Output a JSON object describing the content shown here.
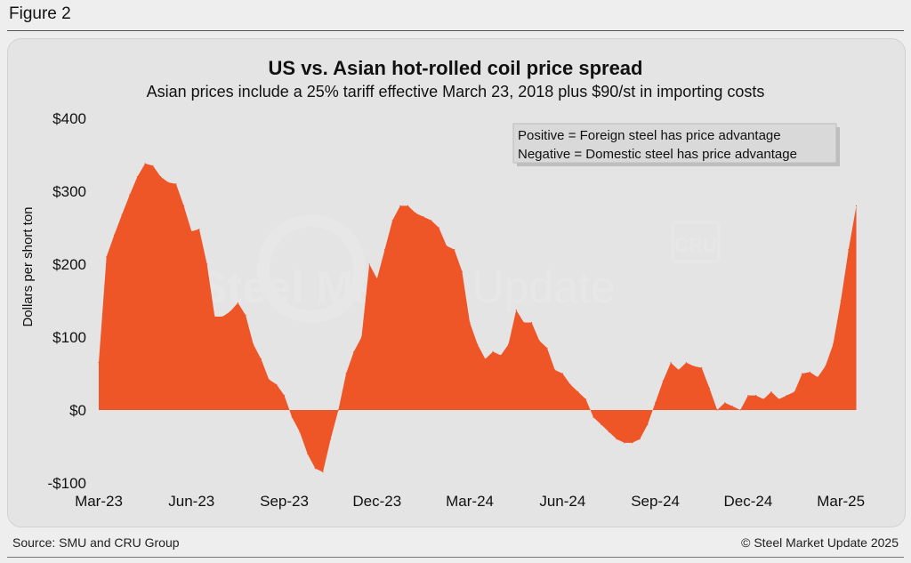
{
  "figure_label": "Figure 2",
  "source": "Source: SMU and CRU Group",
  "copyright": "© Steel Market Update 2025",
  "watermark": {
    "brand_a": "Steel Market",
    "brand_b": " Update",
    "mark": "CRU"
  },
  "colors": {
    "area": "#EE5527",
    "background": "#e4e4e4",
    "legend_bg": "#d9d9d9"
  },
  "chart_data": {
    "type": "area",
    "title": "US vs. Asian hot-rolled coil price spread",
    "subtitle": "Asian prices include a 25% tariff effective March 23, 2018 plus $90/st in importing costs",
    "xlabel": "",
    "ylabel": "Dollars per short ton",
    "ylim": [
      -100,
      400
    ],
    "yticks": [
      -100,
      0,
      100,
      200,
      300,
      400
    ],
    "ytick_labels": [
      "-$100",
      "$0",
      "$100",
      "$200",
      "$300",
      "$400"
    ],
    "xlim": [
      0,
      24.6
    ],
    "xticks": [
      0,
      3,
      6,
      9,
      12,
      15,
      18,
      21,
      24
    ],
    "xtick_labels": [
      "Mar-23",
      "Jun-23",
      "Sep-23",
      "Dec-23",
      "Mar-24",
      "Jun-24",
      "Sep-24",
      "Dec-24",
      "Mar-25"
    ],
    "legend": [
      "Positive = Foreign steel has price advantage",
      "Negative = Domestic steel has price advantage"
    ],
    "legend_position": "top-right",
    "x": [
      0,
      0.25,
      0.5,
      0.75,
      1.0,
      1.25,
      1.5,
      1.75,
      2.0,
      2.25,
      2.5,
      2.75,
      3.0,
      3.25,
      3.5,
      3.75,
      4.0,
      4.25,
      4.5,
      4.75,
      5.0,
      5.25,
      5.5,
      5.75,
      6.0,
      6.25,
      6.5,
      6.75,
      7.0,
      7.25,
      7.5,
      7.75,
      8.0,
      8.25,
      8.5,
      8.75,
      9.0,
      9.25,
      9.5,
      9.75,
      10.0,
      10.25,
      10.5,
      10.75,
      11.0,
      11.25,
      11.5,
      11.75,
      12.0,
      12.25,
      12.5,
      12.75,
      13.0,
      13.25,
      13.5,
      13.75,
      14.0,
      14.25,
      14.5,
      14.75,
      15.0,
      15.25,
      15.5,
      15.75,
      16.0,
      16.25,
      16.5,
      16.75,
      17.0,
      17.25,
      17.5,
      17.75,
      18.0,
      18.25,
      18.5,
      18.75,
      19.0,
      19.25,
      19.5,
      19.75,
      20.0,
      20.25,
      20.5,
      20.75,
      21.0,
      21.25,
      21.5,
      21.75,
      22.0,
      22.25,
      22.5,
      22.75,
      23.0,
      23.25,
      23.5,
      23.75,
      24.0,
      24.25,
      24.5
    ],
    "values": [
      65,
      210,
      240,
      268,
      295,
      320,
      338,
      335,
      320,
      312,
      310,
      280,
      245,
      248,
      200,
      128,
      128,
      135,
      147,
      130,
      90,
      70,
      42,
      35,
      20,
      -10,
      -30,
      -60,
      -80,
      -85,
      -40,
      0,
      50,
      80,
      100,
      200,
      180,
      220,
      260,
      280,
      280,
      270,
      265,
      260,
      250,
      225,
      220,
      190,
      120,
      90,
      70,
      80,
      75,
      90,
      137,
      120,
      120,
      95,
      85,
      55,
      50,
      35,
      25,
      15,
      -10,
      -20,
      -30,
      -40,
      -45,
      -45,
      -40,
      -20,
      10,
      40,
      65,
      55,
      65,
      60,
      58,
      30,
      0,
      10,
      5,
      0,
      20,
      20,
      15,
      25,
      15,
      20,
      25,
      50,
      52,
      45,
      60,
      90,
      150,
      220,
      280
    ]
  }
}
